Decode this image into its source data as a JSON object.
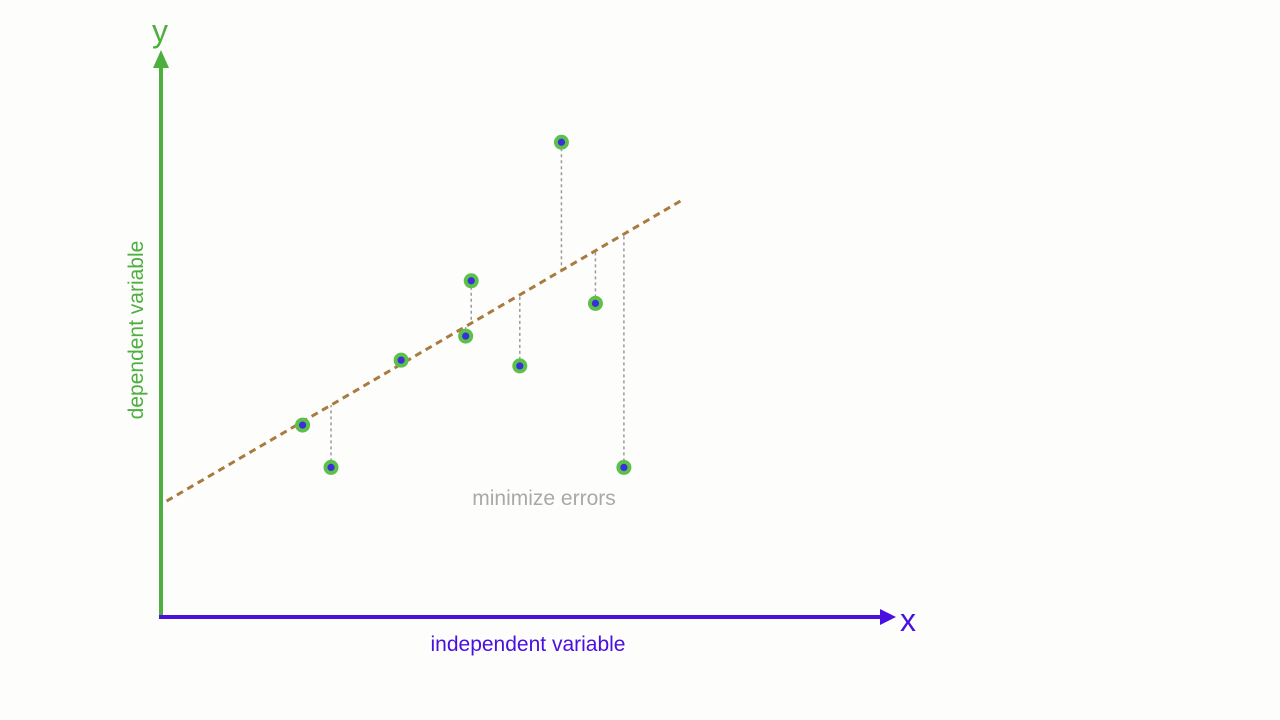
{
  "chart_data": {
    "type": "scatter",
    "title": "",
    "xlabel": "independent variable",
    "ylabel": "dependent variable",
    "x_axis_letter": "x",
    "y_axis_letter": "y",
    "annotation": "minimize errors",
    "grid": false,
    "xlim": [
      0,
      100
    ],
    "ylim": [
      0,
      100
    ],
    "points": [
      {
        "x": 20.4,
        "y": 39.9
      },
      {
        "x": 24.5,
        "y": 31.1
      },
      {
        "x": 34.6,
        "y": 53.4
      },
      {
        "x": 43.9,
        "y": 58.4
      },
      {
        "x": 44.7,
        "y": 69.9
      },
      {
        "x": 51.7,
        "y": 52.2
      },
      {
        "x": 57.7,
        "y": 98.7
      },
      {
        "x": 62.6,
        "y": 65.2
      },
      {
        "x": 66.7,
        "y": 31.1
      }
    ],
    "fit_line": {
      "x": [
        0.8,
        75.0
      ],
      "y": [
        24.1,
        86.6
      ]
    },
    "show_residuals": true,
    "colors": {
      "y_axis": "#4caf3e",
      "x_axis": "#4a10e0",
      "fit_line": "#a87b3e",
      "residual": "#9a9a9a",
      "point_ring": "#5cc04a",
      "point_core": "#3a2fd8",
      "annotation": "#a9a9a9",
      "background": "#fdfdfc"
    }
  }
}
